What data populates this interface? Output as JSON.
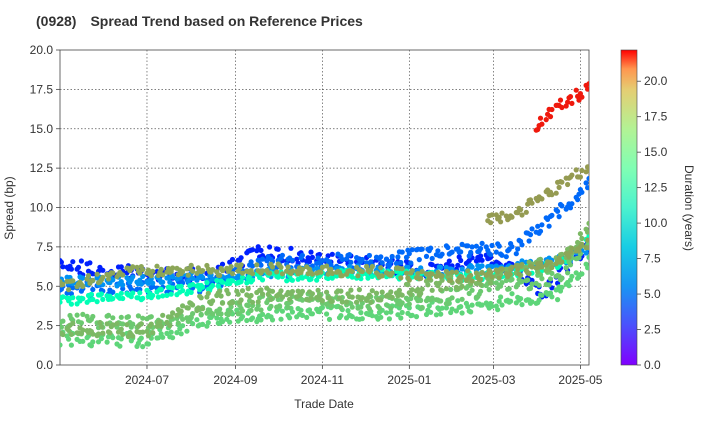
{
  "chart_data": {
    "type": "scatter",
    "title_code": "(0928)",
    "title": "Spread Trend based on Reference Prices",
    "xlabel": "Trade Date",
    "ylabel": "Spread (bp)",
    "colorbar_label": "Duration (years)",
    "x_ticks": [
      "2024-07",
      "2024-09",
      "2024-11",
      "2025-01",
      "2025-03",
      "2025-05"
    ],
    "y_ticks": [
      "0.0",
      "2.5",
      "5.0",
      "7.5",
      "10.0",
      "12.5",
      "15.0",
      "17.5",
      "20.0"
    ],
    "colorbar_ticks": [
      "0.0",
      "2.5",
      "5.0",
      "7.5",
      "10.0",
      "12.5",
      "15.0",
      "17.5",
      "20.0"
    ],
    "xlim": [
      "2024-05-01",
      "2025-05-07"
    ],
    "ylim": [
      0,
      20
    ],
    "color_range": [
      0,
      22.2
    ],
    "colormap": "rainbow",
    "grid": true,
    "series_trends": [
      {
        "duration": 0.9,
        "start": "2024-05-01",
        "end": "2025-05-07",
        "points": [
          [
            "2024-05-01",
            6.3
          ],
          [
            "2024-06-15",
            5.9
          ],
          [
            "2024-08-15",
            5.6
          ],
          [
            "2024-09-20",
            7.3
          ],
          [
            "2024-10-20",
            6.8
          ],
          [
            "2024-12-15",
            6.3
          ],
          [
            "2025-01-15",
            6.0
          ],
          [
            "2025-02-15",
            6.8
          ],
          [
            "2025-03-15",
            6.0
          ],
          [
            "2025-04-05",
            4.4
          ],
          [
            "2025-04-25",
            6.8
          ],
          [
            "2025-05-07",
            7.6
          ]
        ],
        "spread": 0.45
      },
      {
        "duration": 3.0,
        "start": "2024-05-01",
        "end": "2025-05-07",
        "points": [
          [
            "2024-05-01",
            4.9
          ],
          [
            "2024-06-15",
            4.8
          ],
          [
            "2024-08-15",
            5.1
          ],
          [
            "2024-09-20",
            6.5
          ],
          [
            "2024-10-20",
            6.6
          ],
          [
            "2024-12-15",
            6.6
          ],
          [
            "2025-01-15",
            7.1
          ],
          [
            "2025-02-15",
            7.4
          ],
          [
            "2025-03-15",
            7.3
          ],
          [
            "2025-04-05",
            8.8
          ],
          [
            "2025-04-25",
            10.5
          ],
          [
            "2025-05-07",
            11.4
          ]
        ],
        "spread": 0.45
      },
      {
        "duration": 4.3,
        "start": "2024-05-01",
        "end": "2025-05-07",
        "points": [
          [
            "2024-05-01",
            5.3
          ],
          [
            "2024-06-15",
            5.3
          ],
          [
            "2024-08-15",
            5.6
          ],
          [
            "2024-09-20",
            5.8
          ],
          [
            "2024-11-15",
            6.0
          ],
          [
            "2025-01-15",
            5.9
          ],
          [
            "2025-03-01",
            6.1
          ],
          [
            "2025-04-15",
            6.6
          ],
          [
            "2025-05-07",
            7.3
          ]
        ],
        "spread": 0.3
      },
      {
        "duration": 11.0,
        "start": "2024-05-01",
        "end": "2025-05-07",
        "points": [
          [
            "2024-05-01",
            4.1
          ],
          [
            "2024-06-15",
            4.3
          ],
          [
            "2024-08-15",
            5.0
          ],
          [
            "2024-09-20",
            5.6
          ],
          [
            "2024-12-15",
            5.8
          ],
          [
            "2025-01-15",
            5.6
          ],
          [
            "2025-03-01",
            5.7
          ],
          [
            "2025-04-15",
            6.3
          ],
          [
            "2025-05-07",
            8.2
          ]
        ],
        "spread": 0.3
      },
      {
        "duration": 15.2,
        "start": "2024-05-01",
        "end": "2025-05-07",
        "points": [
          [
            "2024-05-01",
            1.7
          ],
          [
            "2024-07-01",
            1.6
          ],
          [
            "2024-08-15",
            3.0
          ],
          [
            "2024-10-01",
            3.3
          ],
          [
            "2024-12-15",
            3.3
          ],
          [
            "2025-01-15",
            3.6
          ],
          [
            "2025-03-01",
            3.9
          ],
          [
            "2025-04-15",
            4.6
          ],
          [
            "2025-05-07",
            6.4
          ]
        ],
        "spread": 0.45
      },
      {
        "duration": 15.8,
        "start": "2024-05-01",
        "end": "2025-05-07",
        "points": [
          [
            "2024-05-01",
            2.8
          ],
          [
            "2024-07-01",
            2.7
          ],
          [
            "2024-08-15",
            3.4
          ],
          [
            "2024-10-01",
            4.1
          ],
          [
            "2024-12-15",
            4.0
          ],
          [
            "2025-01-15",
            4.1
          ],
          [
            "2025-03-01",
            4.9
          ],
          [
            "2025-04-15",
            5.6
          ],
          [
            "2025-05-07",
            7.6
          ]
        ],
        "spread": 0.45
      },
      {
        "duration": 16.5,
        "start": "2024-05-01",
        "end": "2025-05-07",
        "points": [
          [
            "2024-05-01",
            2.3
          ],
          [
            "2024-07-01",
            2.2
          ],
          [
            "2024-08-15",
            4.3
          ],
          [
            "2024-10-01",
            4.5
          ],
          [
            "2024-12-15",
            4.4
          ],
          [
            "2025-01-15",
            5.0
          ],
          [
            "2025-03-01",
            5.6
          ],
          [
            "2025-04-15",
            6.6
          ],
          [
            "2025-05-07",
            8.6
          ]
        ],
        "spread": 0.45
      },
      {
        "duration": 17.2,
        "start": "2024-05-01",
        "end": "2025-05-07",
        "points": [
          [
            "2024-05-01",
            5.0
          ],
          [
            "2024-06-15",
            5.9
          ],
          [
            "2024-08-15",
            6.0
          ],
          [
            "2024-10-01",
            6.1
          ],
          [
            "2024-12-15",
            5.9
          ],
          [
            "2025-01-15",
            5.6
          ],
          [
            "2025-03-01",
            5.7
          ],
          [
            "2025-04-15",
            6.5
          ],
          [
            "2025-05-07",
            7.8
          ]
        ],
        "spread": 0.35
      },
      {
        "duration": 17.6,
        "start": "2025-02-25",
        "end": "2025-05-07",
        "points": [
          [
            "2025-02-25",
            9.2
          ],
          [
            "2025-03-20",
            9.8
          ],
          [
            "2025-04-10",
            11.0
          ],
          [
            "2025-05-07",
            12.6
          ]
        ],
        "spread": 0.35
      },
      {
        "duration": 21.5,
        "start": "2025-03-29",
        "end": "2025-05-07",
        "points": [
          [
            "2025-03-29",
            15.0
          ],
          [
            "2025-04-15",
            16.3
          ],
          [
            "2025-05-07",
            17.6
          ]
        ],
        "spread": 0.4
      }
    ]
  }
}
